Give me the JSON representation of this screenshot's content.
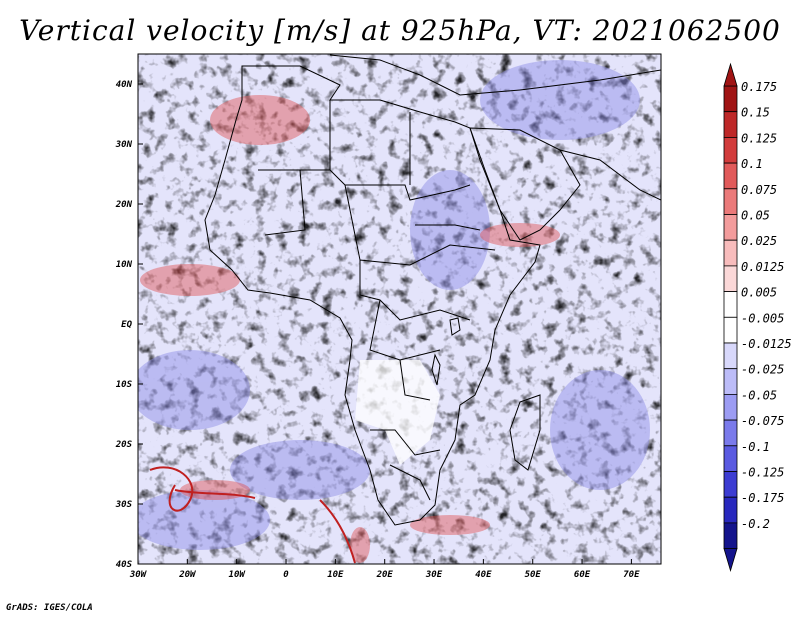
{
  "title": "Vertical velocity [m/s] at 925hPa, VT: 2021062500",
  "footer": "GrADS: IGES/COLA",
  "map": {
    "lon_range": [
      -30,
      76
    ],
    "lat_range": [
      -40,
      45
    ],
    "x_ticks": [
      "30W",
      "20W",
      "10W",
      "0",
      "10E",
      "20E",
      "30E",
      "40E",
      "50E",
      "60E",
      "70E"
    ],
    "y_ticks": [
      "40N",
      "30N",
      "20N",
      "10N",
      "EQ",
      "10S",
      "20S",
      "30S",
      "40S"
    ]
  },
  "colorbar": {
    "labels": [
      "0.175",
      "0.15",
      "0.125",
      "0.1",
      "0.075",
      "0.05",
      "0.025",
      "0.0125",
      "0.005",
      "-0.005",
      "-0.0125",
      "-0.025",
      "-0.05",
      "-0.075",
      "-0.1",
      "-0.125",
      "-0.175",
      "-0.2"
    ],
    "colors": [
      "#a01414",
      "#be2828",
      "#d23c3c",
      "#e15a5a",
      "#eb7a7a",
      "#f39c9c",
      "#f8bcbc",
      "#fbd8d8",
      "#ffffff",
      "#ffffff",
      "#d8d8fb",
      "#bcbcf8",
      "#9c9cf3",
      "#7a7aeb",
      "#5a5ae1",
      "#3c3cd2",
      "#2828be",
      "#14148c"
    ]
  }
}
